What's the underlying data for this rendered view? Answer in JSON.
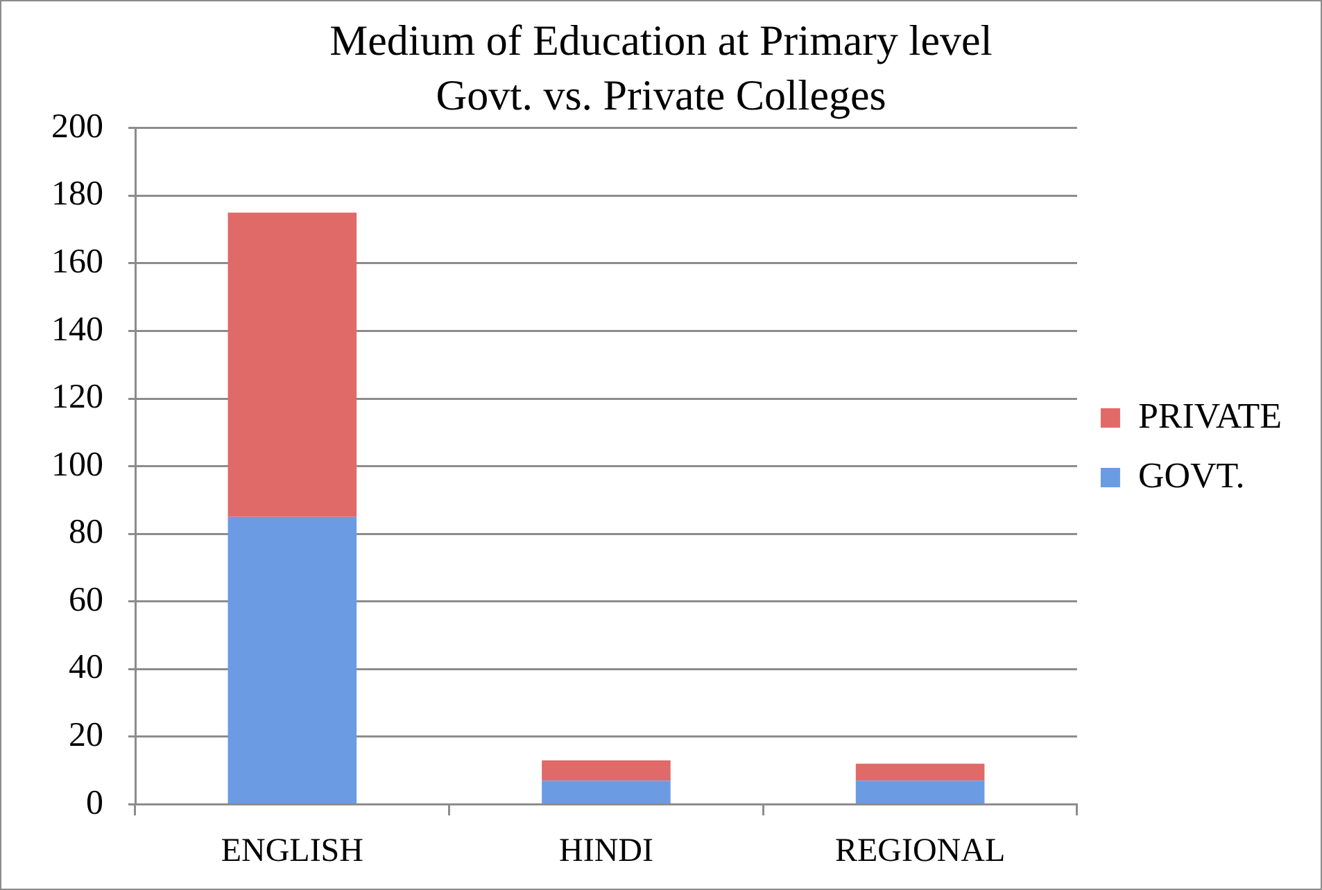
{
  "chart_data": {
    "type": "bar",
    "title": "Medium of Education at Primary level",
    "subtitle": "Govt. vs. Private Colleges",
    "categories": [
      "ENGLISH",
      "HINDI",
      "REGIONAL"
    ],
    "series": [
      {
        "name": "GOVT.",
        "color": "#6b9be3",
        "values": [
          85,
          7,
          7
        ]
      },
      {
        "name": "PRIVATE",
        "color": "#e06a68",
        "values": [
          90,
          6,
          5
        ]
      }
    ],
    "stacked": true,
    "ylim": [
      0,
      200
    ],
    "yticks": [
      0,
      20,
      40,
      60,
      80,
      100,
      120,
      140,
      160,
      180,
      200
    ],
    "grid": "y",
    "legend": "right"
  }
}
